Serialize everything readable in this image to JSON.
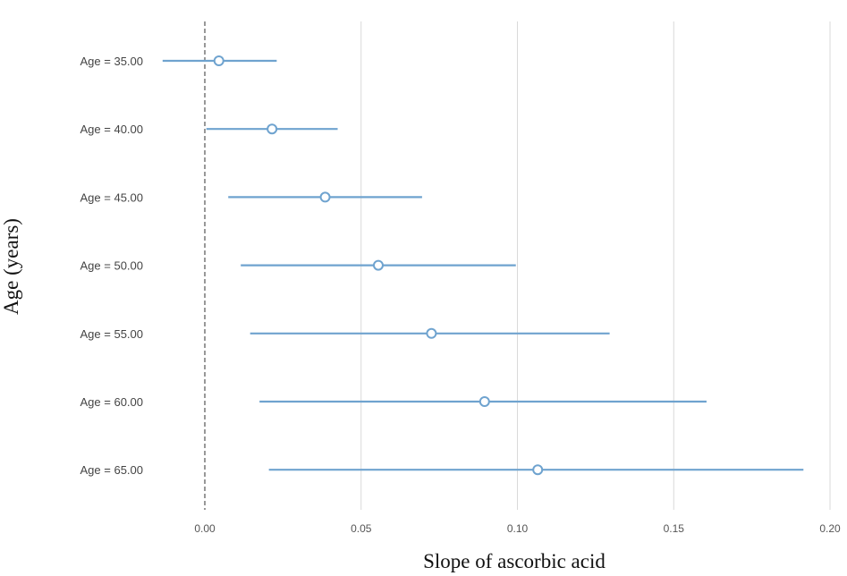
{
  "chart_data": {
    "type": "forest",
    "xlabel": "Slope of ascorbic acid",
    "ylabel": "Age (years)",
    "xlim": [
      -0.015,
      0.2
    ],
    "xticks": [
      "0.00",
      "0.05",
      "0.10",
      "0.15",
      "0.20"
    ],
    "xtick_values": [
      0.0,
      0.05,
      0.1,
      0.15,
      0.2
    ],
    "reference_line": 0.0,
    "grid": "vertical",
    "color": "#6fa3cf",
    "categories": [
      "Age = 35.00",
      "Age = 40.00",
      "Age = 45.00",
      "Age = 50.00",
      "Age = 55.00",
      "Age = 60.00",
      "Age = 65.00"
    ],
    "estimates": [
      0.0045,
      0.0215,
      0.0385,
      0.0555,
      0.0725,
      0.0895,
      0.1065
    ],
    "lower": [
      -0.0135,
      0.0005,
      0.0075,
      0.0115,
      0.0145,
      0.0175,
      0.0205
    ],
    "upper": [
      0.023,
      0.0425,
      0.0695,
      0.0995,
      0.1295,
      0.1605,
      0.1915
    ]
  }
}
